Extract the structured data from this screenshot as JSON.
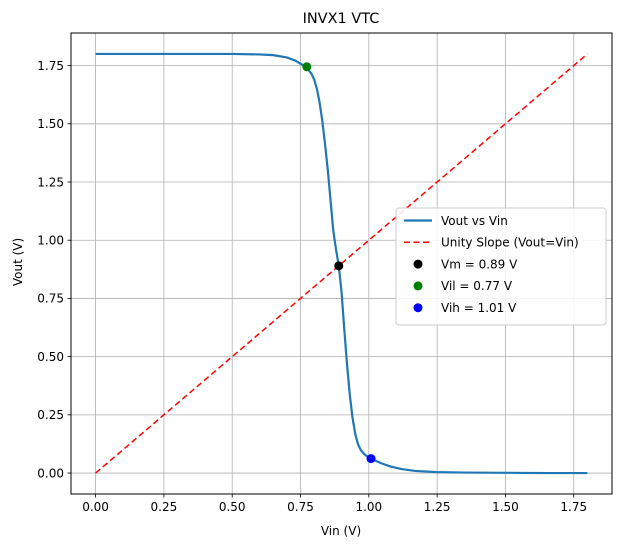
{
  "chart_data": {
    "type": "line",
    "title": "INVX1 VTC",
    "xlabel": "Vin (V)",
    "ylabel": "Vout (V)",
    "xlim": [
      -0.09,
      1.89
    ],
    "ylim": [
      -0.09,
      1.89
    ],
    "xticks": [
      0.0,
      0.25,
      0.5,
      0.75,
      1.0,
      1.25,
      1.5,
      1.75
    ],
    "yticks": [
      0.0,
      0.25,
      0.5,
      0.75,
      1.0,
      1.25,
      1.5,
      1.75
    ],
    "xtick_labels": [
      "0.00",
      "0.25",
      "0.50",
      "0.75",
      "1.00",
      "1.25",
      "1.50",
      "1.75"
    ],
    "ytick_labels": [
      "0.00",
      "0.25",
      "0.50",
      "0.75",
      "1.00",
      "1.25",
      "1.50",
      "1.75"
    ],
    "grid": true,
    "legend_position": "center-right",
    "series": [
      {
        "name": "Vout vs Vin",
        "kind": "line",
        "color": "#1f77b4",
        "x": [
          0.0,
          0.25,
          0.5,
          0.6,
          0.65,
          0.7,
          0.73,
          0.75,
          0.77,
          0.79,
          0.8,
          0.81,
          0.82,
          0.83,
          0.84,
          0.85,
          0.86,
          0.87,
          0.88,
          0.89,
          0.9,
          0.91,
          0.92,
          0.93,
          0.94,
          0.95,
          0.96,
          0.97,
          0.98,
          0.99,
          1.0,
          1.01,
          1.03,
          1.05,
          1.08,
          1.12,
          1.17,
          1.25,
          1.35,
          1.5,
          1.65,
          1.8
        ],
        "y": [
          1.8,
          1.8,
          1.8,
          1.798,
          1.795,
          1.785,
          1.772,
          1.758,
          1.745,
          1.715,
          1.69,
          1.65,
          1.59,
          1.51,
          1.41,
          1.3,
          1.17,
          1.04,
          0.96,
          0.89,
          0.78,
          0.62,
          0.47,
          0.34,
          0.24,
          0.17,
          0.125,
          0.1,
          0.085,
          0.075,
          0.068,
          0.062,
          0.05,
          0.04,
          0.028,
          0.017,
          0.009,
          0.004,
          0.002,
          0.001,
          0.0,
          0.0
        ]
      },
      {
        "name": "Unity Slope (Vout=Vin)",
        "kind": "dashed-line",
        "color": "#ff0000",
        "x": [
          0.0,
          1.8
        ],
        "y": [
          0.0,
          1.8
        ]
      },
      {
        "name": "Vm = 0.89 V",
        "kind": "point",
        "color": "#000000",
        "x": [
          0.89
        ],
        "y": [
          0.89
        ]
      },
      {
        "name": "Vil = 0.77 V",
        "kind": "point",
        "color": "#008000",
        "x": [
          0.773
        ],
        "y": [
          1.745
        ]
      },
      {
        "name": "Vih = 1.01 V",
        "kind": "point",
        "color": "#0000ff",
        "x": [
          1.008
        ],
        "y": [
          0.062
        ]
      }
    ]
  }
}
